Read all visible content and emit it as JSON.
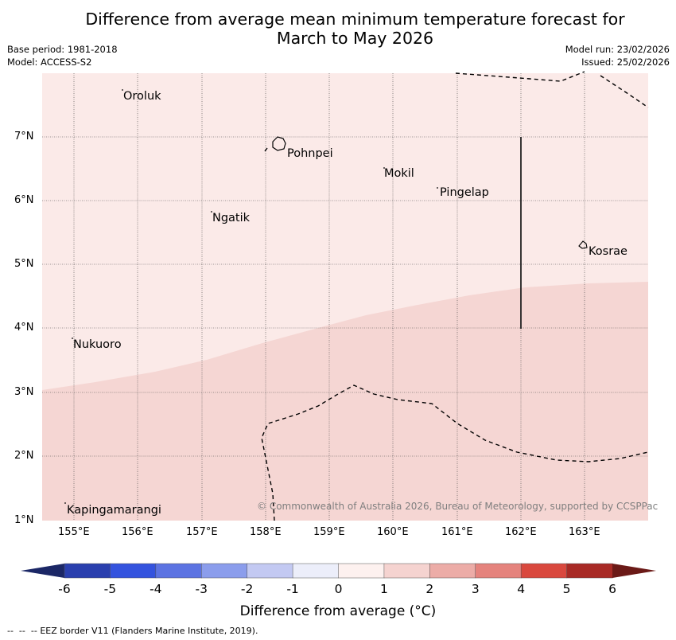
{
  "title": {
    "line1": "Difference from average mean minimum temperature forecast for",
    "line2": "March to May 2026"
  },
  "meta": {
    "base_period": "Base period: 1981-2018",
    "model": "Model: ACCESS-S2",
    "model_run": "Model run: 23/02/2026",
    "issued": "Issued: 25/02/2026"
  },
  "map": {
    "lon_range": [
      154.5,
      164.0
    ],
    "lat_range": [
      1.0,
      8.0
    ],
    "x_ticks": [
      "155°E",
      "156°E",
      "157°E",
      "158°E",
      "159°E",
      "160°E",
      "161°E",
      "162°E",
      "163°E"
    ],
    "y_ticks": [
      "1°N",
      "2°N",
      "3°N",
      "4°N",
      "5°N",
      "6°N",
      "7°N"
    ],
    "colors": {
      "band_0_1": "#fbeae8",
      "band_1_2": "#f5d6d3"
    },
    "places": [
      {
        "name": "Oroluk"
      },
      {
        "name": "Pohnpei"
      },
      {
        "name": "Mokil"
      },
      {
        "name": "Pingelap"
      },
      {
        "name": "Ngatik"
      },
      {
        "name": "Kosrae"
      },
      {
        "name": "Nukuoro"
      },
      {
        "name": "Kapingamarangi"
      }
    ],
    "copyright": "© Commonwealth of Australia 2026, Bureau of Meteorology, supported by CCSPPac"
  },
  "colorbar": {
    "ticks": [
      "-6",
      "-5",
      "-4",
      "-3",
      "-2",
      "-1",
      "0",
      "1",
      "2",
      "3",
      "4",
      "5",
      "6"
    ],
    "colors": [
      "#2a3fae",
      "#3453de",
      "#5c73e2",
      "#8b9dec",
      "#c3c9f2",
      "#eceefa",
      "#fdf1ef",
      "#f5d3d0",
      "#ecaca7",
      "#e5837d",
      "#d9483e",
      "#a82a25"
    ],
    "extend_low_color": "#1b2766",
    "extend_high_color": "#6b1a17",
    "label": "Difference from average (°C)"
  },
  "footnote": "EEZ border V11 (Flanders Marine Institute, 2019)."
}
